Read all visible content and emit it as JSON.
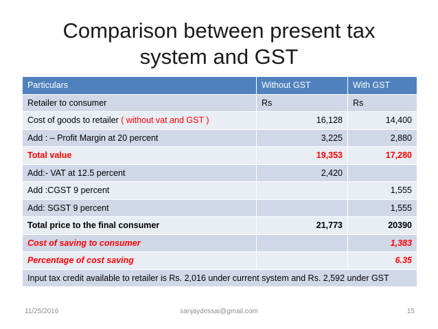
{
  "title": {
    "line1": "Comparison between present tax",
    "line2": "system and GST"
  },
  "table": {
    "headers": [
      "Particulars",
      "Without GST",
      "With GST"
    ],
    "rows": [
      {
        "label": "Retailer to consumer",
        "without": "Rs",
        "with": "Rs"
      },
      {
        "label": "Cost of goods to retailer",
        "label_note": "( without vat and GST )",
        "without": "16,128",
        "with": "14,400"
      },
      {
        "label": "Add : – Profit Margin at 20 percent",
        "without": "3,225",
        "with": "2,880"
      },
      {
        "label": "Total value",
        "without": "19,353",
        "with": "17,280"
      },
      {
        "label": "Add:- VAT at 12.5 percent",
        "without": "2,420",
        "with": ""
      },
      {
        "label": "Add :CGST 9 percent",
        "without": "",
        "with": "1,555"
      },
      {
        "label": "Add: SGST 9 percent",
        "without": "",
        "with": "1,555"
      },
      {
        "label": "Total price to the final consumer",
        "without": "21,773",
        "with": "20390"
      },
      {
        "label": "Cost of saving to consumer",
        "without": "",
        "with": "1,383"
      },
      {
        "label": "Percentage of cost saving",
        "without": "",
        "with": "6.35"
      }
    ],
    "note": "Input tax credit available to retailer is Rs. 2,016 under current system  and Rs. 2,592 under GST"
  },
  "footer": {
    "date": "11/25/2016",
    "email": "sanjaydessai@gmail.com",
    "page": "15"
  },
  "colors": {
    "header_bg": "#4f81bd",
    "row_odd": "#d0d8e8",
    "row_even": "#e9edf4",
    "highlight_red": "#ff0000"
  }
}
